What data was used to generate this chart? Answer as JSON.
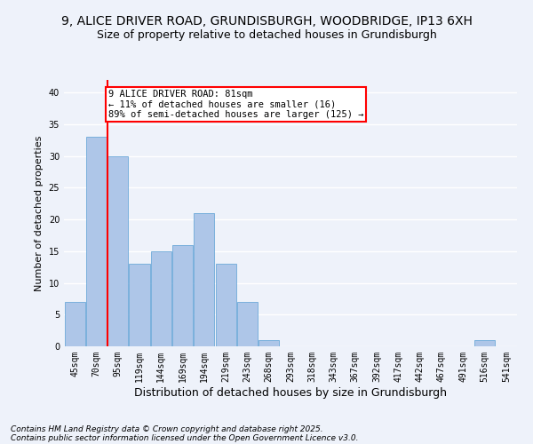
{
  "title1": "9, ALICE DRIVER ROAD, GRUNDISBURGH, WOODBRIDGE, IP13 6XH",
  "title2": "Size of property relative to detached houses in Grundisburgh",
  "xlabel": "Distribution of detached houses by size in Grundisburgh",
  "ylabel": "Number of detached properties",
  "categories": [
    "45sqm",
    "70sqm",
    "95sqm",
    "119sqm",
    "144sqm",
    "169sqm",
    "194sqm",
    "219sqm",
    "243sqm",
    "268sqm",
    "293sqm",
    "318sqm",
    "343sqm",
    "367sqm",
    "392sqm",
    "417sqm",
    "442sqm",
    "467sqm",
    "491sqm",
    "516sqm",
    "541sqm"
  ],
  "values": [
    7,
    33,
    30,
    13,
    15,
    16,
    21,
    13,
    7,
    1,
    0,
    0,
    0,
    0,
    0,
    0,
    0,
    0,
    0,
    1,
    0
  ],
  "bar_color": "#aec6e8",
  "bar_edge_color": "#5a9fd4",
  "red_line_x": 1.5,
  "annotation_line1": "9 ALICE DRIVER ROAD: 81sqm",
  "annotation_line2": "← 11% of detached houses are smaller (16)",
  "annotation_line3": "89% of semi-detached houses are larger (125) →",
  "annotation_box_color": "white",
  "annotation_box_edge": "red",
  "red_line_color": "red",
  "ylim": [
    0,
    42
  ],
  "yticks": [
    0,
    5,
    10,
    15,
    20,
    25,
    30,
    35,
    40
  ],
  "footnote1": "Contains HM Land Registry data © Crown copyright and database right 2025.",
  "footnote2": "Contains public sector information licensed under the Open Government Licence v3.0.",
  "bg_color": "#eef2fa",
  "grid_color": "#ffffff",
  "title1_fontsize": 10,
  "title2_fontsize": 9,
  "xlabel_fontsize": 9,
  "ylabel_fontsize": 8,
  "tick_fontsize": 7,
  "annotation_fontsize": 7.5,
  "footnote_fontsize": 6.5
}
